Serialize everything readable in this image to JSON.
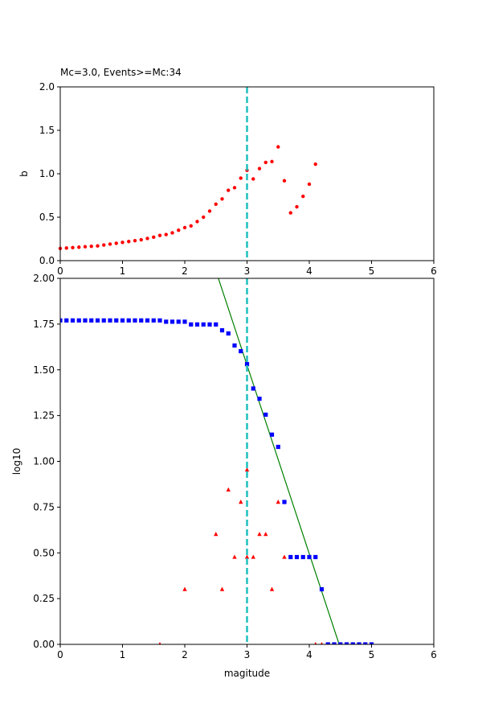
{
  "chart_data": [
    {
      "type": "scatter",
      "title": "Mc=3.0, Events>=Mc:34",
      "xlabel": "",
      "ylabel": "b",
      "xlim": [
        0,
        6
      ],
      "ylim": [
        0,
        2
      ],
      "xticks": [
        "0",
        "1",
        "2",
        "3",
        "4",
        "5",
        "6"
      ],
      "yticks": [
        "0.0",
        "0.5",
        "1.0",
        "1.5",
        "2.0"
      ],
      "grid": false,
      "mc_line": {
        "x": 3.0,
        "color": "#1fbfbf",
        "style": "dashed"
      },
      "series": [
        {
          "marker": "dot",
          "color": "#ff0000",
          "x": [
            0.0,
            0.1,
            0.2,
            0.3,
            0.4,
            0.5,
            0.6,
            0.7,
            0.8,
            0.9,
            1.0,
            1.1,
            1.2,
            1.3,
            1.4,
            1.5,
            1.6,
            1.7,
            1.8,
            1.9,
            2.0,
            2.1,
            2.2,
            2.3,
            2.4,
            2.5,
            2.6,
            2.7,
            2.8,
            2.9,
            3.0,
            3.1,
            3.2,
            3.3,
            3.4,
            3.5,
            3.6,
            3.7,
            3.8,
            3.9,
            4.0,
            4.1
          ],
          "y": [
            0.14,
            0.145,
            0.15,
            0.155,
            0.16,
            0.165,
            0.17,
            0.18,
            0.19,
            0.2,
            0.21,
            0.22,
            0.23,
            0.24,
            0.255,
            0.27,
            0.29,
            0.3,
            0.32,
            0.35,
            0.38,
            0.4,
            0.45,
            0.5,
            0.57,
            0.65,
            0.71,
            0.81,
            0.84,
            0.95,
            1.04,
            0.94,
            1.06,
            1.13,
            1.14,
            1.31,
            0.92,
            0.55,
            0.62,
            0.74,
            0.88,
            1.11
          ]
        }
      ]
    },
    {
      "type": "scatter",
      "title": "",
      "xlabel": "magitude",
      "ylabel": "log10",
      "xlim": [
        0,
        6
      ],
      "ylim": [
        0,
        2
      ],
      "xticks": [
        "0",
        "1",
        "2",
        "3",
        "4",
        "5",
        "6"
      ],
      "yticks": [
        "0.00",
        "0.25",
        "0.50",
        "0.75",
        "1.00",
        "1.25",
        "1.50",
        "1.75",
        "2.00"
      ],
      "grid": false,
      "mc_line": {
        "x": 3.0,
        "color": "#1fbfbf",
        "style": "dashed"
      },
      "fit_line": {
        "color": "#008000",
        "x": [
          2.54,
          4.48
        ],
        "y": [
          2.0,
          0.0
        ]
      },
      "series": [
        {
          "marker": "square",
          "color": "#0000ff",
          "x": [
            0.0,
            0.1,
            0.2,
            0.3,
            0.4,
            0.5,
            0.6,
            0.7,
            0.8,
            0.9,
            1.0,
            1.1,
            1.2,
            1.3,
            1.4,
            1.5,
            1.6,
            1.7,
            1.8,
            1.9,
            2.0,
            2.1,
            2.2,
            2.3,
            2.4,
            2.5,
            2.6,
            2.7,
            2.8,
            2.9,
            3.0,
            3.1,
            3.2,
            3.3,
            3.4,
            3.5,
            3.6,
            3.7,
            3.8,
            3.9,
            4.0,
            4.1,
            4.2,
            4.3,
            4.4,
            4.5,
            4.6,
            4.7,
            4.8,
            4.9,
            5.0
          ],
          "y": [
            1.77,
            1.77,
            1.77,
            1.77,
            1.77,
            1.77,
            1.77,
            1.77,
            1.77,
            1.77,
            1.77,
            1.77,
            1.77,
            1.77,
            1.77,
            1.77,
            1.77,
            1.763,
            1.763,
            1.763,
            1.763,
            1.748,
            1.748,
            1.748,
            1.748,
            1.748,
            1.716,
            1.699,
            1.633,
            1.602,
            1.531,
            1.398,
            1.342,
            1.255,
            1.146,
            1.079,
            0.778,
            0.477,
            0.477,
            0.477,
            0.477,
            0.477,
            0.301,
            0.0,
            0.0,
            0.0,
            0.0,
            0.0,
            0.0,
            0.0,
            0.0
          ]
        },
        {
          "marker": "triangle",
          "color": "#ff0000",
          "x": [
            1.6,
            2.0,
            2.5,
            2.6,
            2.7,
            2.8,
            2.9,
            3.0,
            3.0,
            3.1,
            3.2,
            3.3,
            3.4,
            3.5,
            3.6,
            4.1,
            4.2
          ],
          "y": [
            0.0,
            0.301,
            0.602,
            0.301,
            0.845,
            0.477,
            0.778,
            0.954,
            0.477,
            0.477,
            0.602,
            0.602,
            0.301,
            0.778,
            0.477,
            0.0,
            0.0
          ]
        }
      ]
    }
  ]
}
